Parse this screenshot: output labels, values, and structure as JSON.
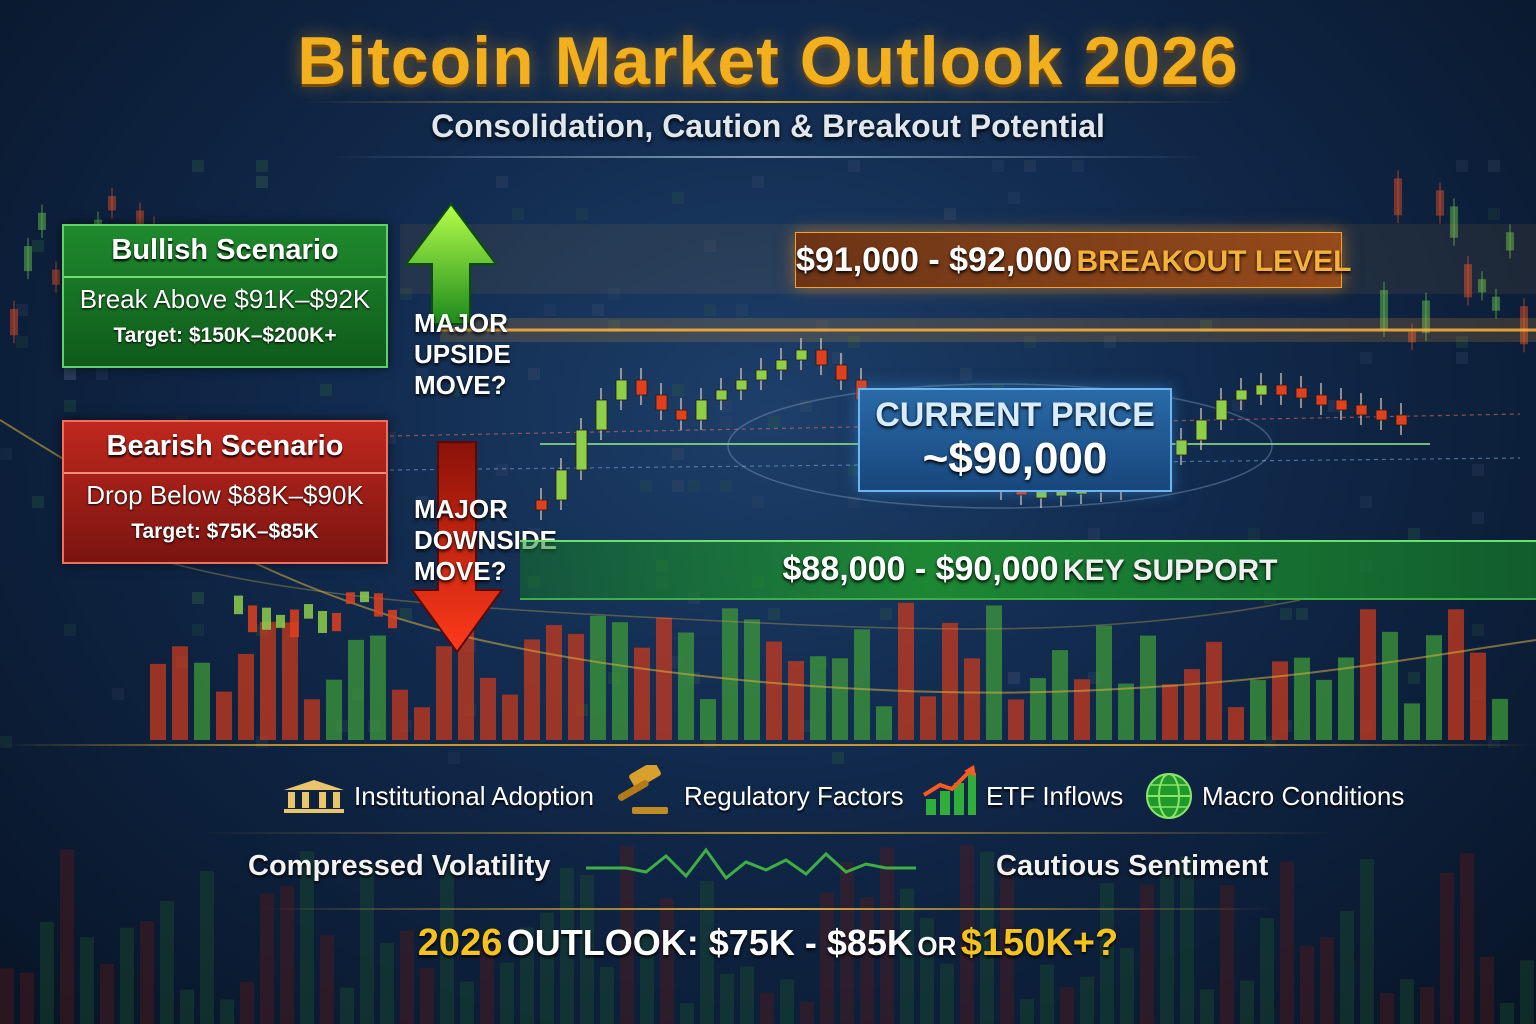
{
  "header": {
    "title": "Bitcoin Market Outlook 2026",
    "subtitle": "Consolidation, Caution & Breakout Potential"
  },
  "bullish": {
    "heading": "Bullish Scenario",
    "condition": "Break Above $91K–$92K",
    "target": "Target: $150K–$200K+"
  },
  "bearish": {
    "heading": "Bearish Scenario",
    "condition": "Drop Below $88K–$90K",
    "target": "Target: $75K–$85K"
  },
  "moves": {
    "upside": [
      "MAJOR",
      "UPSIDE",
      "MOVE?"
    ],
    "downside": [
      "MAJOR",
      "DOWNSIDE",
      "MOVE?"
    ]
  },
  "breakout": {
    "range": "$91,000 - $92,000",
    "label": "BREAKOUT LEVEL"
  },
  "support": {
    "range": "$88,000 - $90,000",
    "label": "KEY SUPPORT"
  },
  "current": {
    "label": "CURRENT PRICE",
    "price": "~$90,000"
  },
  "factors": [
    {
      "label": "Institutional Adoption",
      "icon": "bank-building-icon"
    },
    {
      "label": "Regulatory Factors",
      "icon": "gavel-icon"
    },
    {
      "label": "ETF Inflows",
      "icon": "rising-chart-icon"
    },
    {
      "label": "Macro Conditions",
      "icon": "globe-icon"
    }
  ],
  "indicators": {
    "left": "Compressed Volatility",
    "right": "Cautious Sentiment"
  },
  "outlook": {
    "lead": "2026",
    "mid": "OUTLOOK: $75K - $85K",
    "or": "OR",
    "high": "$150K+?"
  },
  "colors": {
    "gold": "#f2b01e",
    "bull": "#1f8a2e",
    "bear": "#c0281e",
    "blue": "#2a6aa8",
    "orange": "#f5a030"
  }
}
